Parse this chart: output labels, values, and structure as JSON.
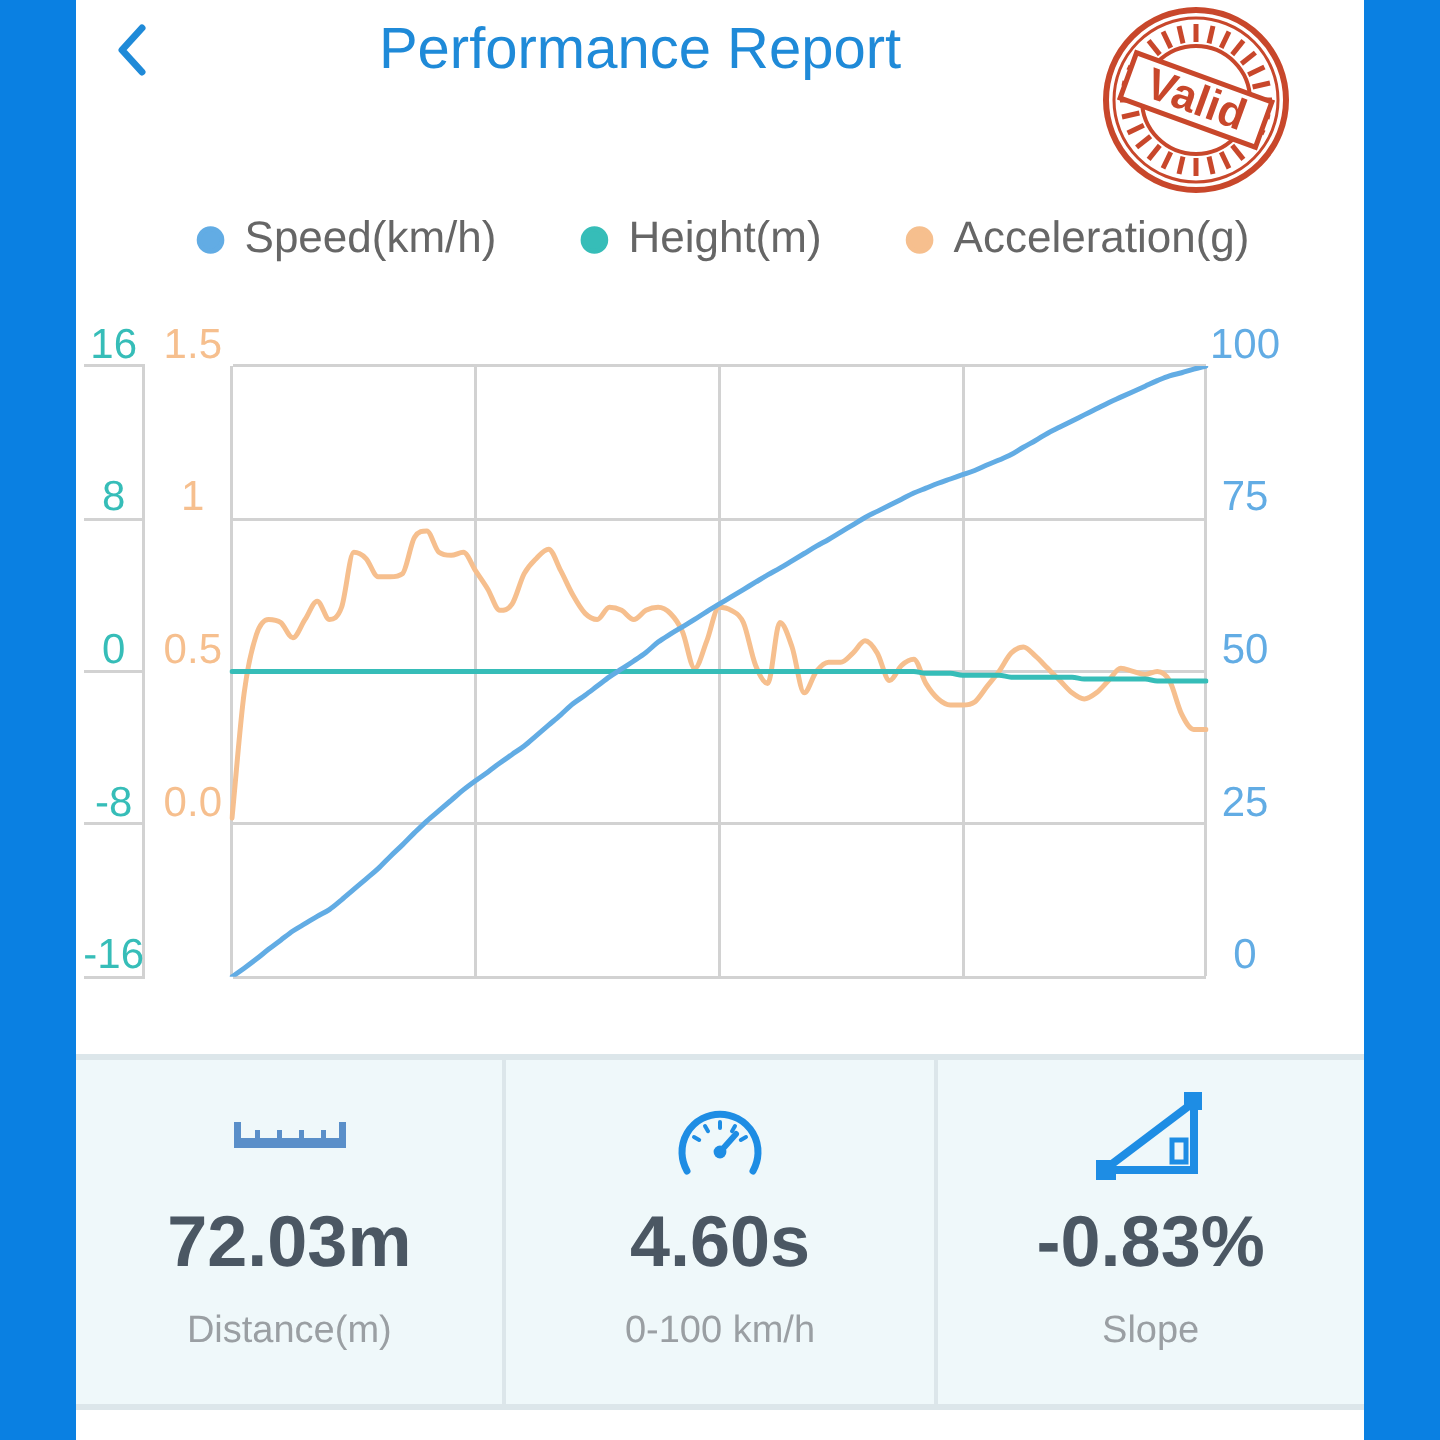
{
  "chart_data": [
    {
      "type": "line",
      "title": "Performance Report",
      "annotations": [
        "Valid"
      ],
      "categories": [
        null,
        null,
        null,
        null,
        null,
        null,
        null,
        null,
        null,
        null,
        null,
        null,
        null,
        null,
        null,
        null,
        null,
        null,
        null,
        null,
        null,
        null,
        null,
        null,
        null,
        null,
        null,
        null,
        null,
        null,
        null,
        null,
        null,
        null,
        null,
        null,
        null,
        null,
        null,
        null,
        null,
        null,
        null,
        null,
        null,
        null,
        null,
        null,
        null,
        null,
        null,
        null,
        null,
        null,
        null,
        null,
        null,
        null,
        null,
        null,
        null,
        null,
        null,
        null,
        null,
        null,
        null,
        null,
        null,
        null,
        null,
        null,
        null,
        null,
        null,
        null,
        null,
        null,
        null,
        null,
        null
      ],
      "series": [
        {
          "name": "Speed(km/h)",
          "color": "#62ace4",
          "axis": "y2",
          "values": [
            0,
            1.4,
            2.9,
            4.5,
            6.0,
            7.5,
            8.7,
            9.9,
            11.0,
            12.6,
            14.3,
            16.0,
            17.7,
            19.7,
            21.6,
            23.6,
            25.5,
            27.2,
            28.9,
            30.6,
            32.1,
            33.5,
            35.0,
            36.4,
            37.8,
            39.5,
            41.2,
            42.9,
            44.7,
            46.1,
            47.6,
            49.1,
            50.4,
            51.7,
            53.1,
            54.8,
            56.1,
            57.3,
            58.5,
            59.8,
            61.0,
            62.2,
            63.4,
            64.6,
            65.8,
            66.9,
            68.1,
            69.3,
            70.5,
            71.6,
            72.8,
            74.0,
            75.2,
            76.2,
            77.2,
            78.2,
            79.2,
            80.0,
            80.8,
            81.5,
            82.2,
            82.9,
            83.8,
            84.6,
            85.5,
            86.7,
            87.8,
            89.0,
            90.0,
            91.0,
            92.0,
            93.0,
            94.0,
            94.9,
            95.8,
            96.7,
            97.6,
            98.4,
            98.9,
            99.5,
            100
          ]
        },
        {
          "name": "Height(m)",
          "color": "#36bdb8",
          "values": [
            0,
            0,
            0,
            0,
            0,
            0,
            0,
            0,
            0,
            0,
            0,
            0,
            0,
            0,
            0,
            0,
            0,
            0,
            0,
            0,
            0,
            0,
            0,
            0,
            0,
            0,
            0,
            0,
            0,
            0,
            0,
            0,
            0,
            0,
            0,
            0,
            0,
            0,
            0,
            0,
            0,
            0,
            0,
            0,
            0,
            0,
            0,
            0,
            0,
            0,
            0,
            0,
            0,
            0,
            0,
            0,
            0,
            -0.1,
            -0.1,
            -0.1,
            -0.2,
            -0.2,
            -0.2,
            -0.2,
            -0.3,
            -0.3,
            -0.3,
            -0.3,
            -0.3,
            -0.3,
            -0.4,
            -0.4,
            -0.4,
            -0.4,
            -0.4,
            -0.4,
            -0.5,
            -0.5,
            -0.5,
            -0.5,
            -0.5
          ]
        },
        {
          "name": "Acceleration(g)",
          "color": "#f6bf8e",
          "axis": "y3",
          "values": [
            0.02,
            0.43,
            0.62,
            0.67,
            0.66,
            0.61,
            0.67,
            0.73,
            0.67,
            0.71,
            0.89,
            0.87,
            0.81,
            0.81,
            0.82,
            0.94,
            0.96,
            0.89,
            0.88,
            0.89,
            0.83,
            0.77,
            0.7,
            0.72,
            0.82,
            0.87,
            0.9,
            0.83,
            0.75,
            0.69,
            0.67,
            0.71,
            0.7,
            0.67,
            0.7,
            0.71,
            0.69,
            0.63,
            0.51,
            0.6,
            0.71,
            0.7,
            0.66,
            0.52,
            0.46,
            0.66,
            0.58,
            0.43,
            0.5,
            0.53,
            0.53,
            0.56,
            0.6,
            0.56,
            0.47,
            0.52,
            0.54,
            0.46,
            0.41,
            0.39,
            0.39,
            0.4,
            0.45,
            0.5,
            0.56,
            0.58,
            0.55,
            0.51,
            0.47,
            0.43,
            0.41,
            0.43,
            0.47,
            0.51,
            0.5,
            0.49,
            0.5,
            0.47,
            0.36,
            0.31,
            0.31
          ]
        }
      ],
      "ylim": [
        -16,
        16
      ],
      "yticks": [
        -16,
        -8,
        0,
        8,
        16
      ],
      "y2lim": [
        0,
        100
      ],
      "y2ticks": [
        0,
        25,
        50,
        75,
        100
      ],
      "y3lim": [
        -0.5,
        1.5
      ],
      "y3ticks": [
        {
          "value": 0,
          "label": "0.0"
        },
        0.5,
        1,
        1.5
      ],
      "grid": true,
      "legend": "top",
      "marker": "none"
    },
    {
      "type": "other",
      "categories": [
        "Distance(m)",
        "0-100 km/h",
        "Slope"
      ],
      "value_labels": [
        "72.03m",
        "4.60s",
        "-0.83%"
      ]
    }
  ]
}
